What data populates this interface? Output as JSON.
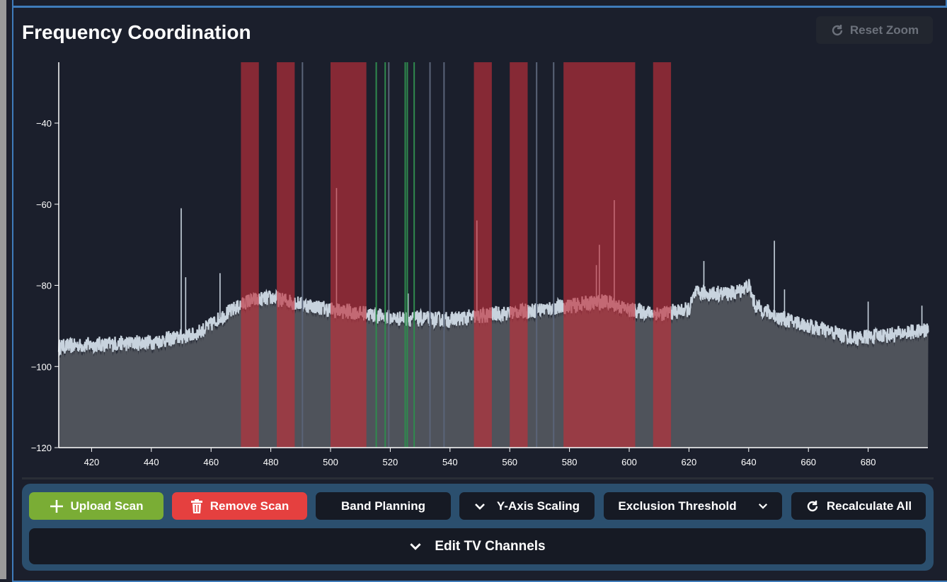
{
  "header": {
    "title": "Frequency Coordination",
    "reset_zoom": "Reset Zoom"
  },
  "toolbar": {
    "upload": "Upload Scan",
    "remove": "Remove Scan",
    "band_planning": "Band Planning",
    "y_axis_scaling": "Y-Axis Scaling",
    "exclusion_threshold": "Exclusion Threshold",
    "recalculate": "Recalculate All",
    "edit_tv": "Edit TV Channels"
  },
  "colors": {
    "upload": "#7aad35",
    "remove": "#e5403f",
    "border": "#3f7cba",
    "band": "#c0303a",
    "trace": "#c8d3de",
    "fill": "#4f535b",
    "green_marker": "#2f8a4e",
    "gray_marker": "#5a6478"
  },
  "chart_data": {
    "type": "area",
    "xlim": [
      409,
      700
    ],
    "ylim": [
      -120,
      -25
    ],
    "x_ticks": [
      420,
      440,
      460,
      480,
      500,
      520,
      540,
      560,
      580,
      600,
      620,
      640,
      660,
      680
    ],
    "y_ticks": [
      -40,
      -60,
      -80,
      -100,
      -120
    ],
    "baseline": [
      [
        409,
        -95
      ],
      [
        440,
        -94
      ],
      [
        455,
        -92
      ],
      [
        465,
        -87
      ],
      [
        472,
        -84
      ],
      [
        480,
        -83
      ],
      [
        500,
        -86
      ],
      [
        512,
        -87
      ],
      [
        520,
        -88
      ],
      [
        540,
        -88.5
      ],
      [
        556,
        -87
      ],
      [
        570,
        -86
      ],
      [
        580,
        -85
      ],
      [
        592,
        -84
      ],
      [
        600,
        -86
      ],
      [
        610,
        -87
      ],
      [
        620,
        -86
      ],
      [
        622,
        -82
      ],
      [
        635,
        -82
      ],
      [
        640,
        -80
      ],
      [
        642,
        -85
      ],
      [
        650,
        -88
      ],
      [
        665,
        -91
      ],
      [
        675,
        -93
      ],
      [
        690,
        -92
      ],
      [
        700,
        -91
      ]
    ],
    "peaks": [
      [
        450,
        -61
      ],
      [
        451.5,
        -78
      ],
      [
        463,
        -77
      ],
      [
        502,
        -56
      ],
      [
        526,
        -82
      ],
      [
        549,
        -64
      ],
      [
        590,
        -70
      ],
      [
        589,
        -75
      ],
      [
        595,
        -59
      ],
      [
        625,
        -74
      ],
      [
        648.6,
        -69
      ],
      [
        652,
        -81
      ],
      [
        680,
        -84
      ],
      [
        698,
        -85
      ]
    ],
    "excluded_bands": [
      [
        470,
        476
      ],
      [
        482,
        488
      ],
      [
        500,
        512
      ],
      [
        548,
        554
      ],
      [
        560,
        566
      ],
      [
        578,
        602
      ],
      [
        608,
        614
      ]
    ],
    "green_markers": [
      515.3,
      518.3,
      525,
      525.7,
      528
    ],
    "gray_markers": [
      490.6,
      519.5,
      533.3,
      538,
      569,
      574.7
    ]
  }
}
